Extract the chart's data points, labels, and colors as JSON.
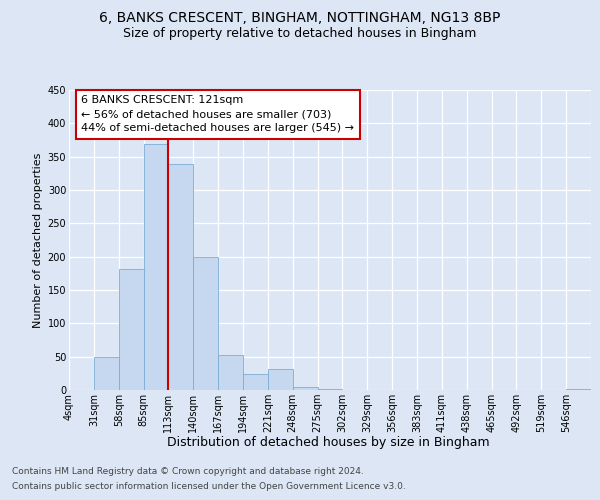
{
  "title_line1": "6, BANKS CRESCENT, BINGHAM, NOTTINGHAM, NG13 8BP",
  "title_line2": "Size of property relative to detached houses in Bingham",
  "xlabel": "Distribution of detached houses by size in Bingham",
  "ylabel": "Number of detached properties",
  "footer_line1": "Contains HM Land Registry data © Crown copyright and database right 2024.",
  "footer_line2": "Contains public sector information licensed under the Open Government Licence v3.0.",
  "bin_labels": [
    "4sqm",
    "31sqm",
    "58sqm",
    "85sqm",
    "113sqm",
    "140sqm",
    "167sqm",
    "194sqm",
    "221sqm",
    "248sqm",
    "275sqm",
    "302sqm",
    "329sqm",
    "356sqm",
    "383sqm",
    "411sqm",
    "438sqm",
    "465sqm",
    "492sqm",
    "519sqm",
    "546sqm"
  ],
  "bar_values": [
    0,
    49,
    181,
    369,
    339,
    199,
    53,
    24,
    31,
    5,
    2,
    0,
    0,
    0,
    0,
    0,
    0,
    0,
    0,
    0,
    1
  ],
  "bar_color": "#c5d8f0",
  "bar_edge_color": "#7aadd4",
  "vline_x": 4.0,
  "vline_color": "#cc0000",
  "annotation_text": "6 BANKS CRESCENT: 121sqm\n← 56% of detached houses are smaller (703)\n44% of semi-detached houses are larger (545) →",
  "annotation_box_facecolor": "#ffffff",
  "annotation_box_edgecolor": "#cc0000",
  "ylim_max": 450,
  "yticks": [
    0,
    50,
    100,
    150,
    200,
    250,
    300,
    350,
    400,
    450
  ],
  "background_color": "#dce6f5",
  "plot_bg_color": "#dce6f5",
  "grid_color": "#ffffff",
  "title_fontsize": 10,
  "subtitle_fontsize": 9,
  "ylabel_fontsize": 8,
  "xlabel_fontsize": 9,
  "tick_fontsize": 7,
  "annotation_fontsize": 8,
  "footer_fontsize": 6.5
}
